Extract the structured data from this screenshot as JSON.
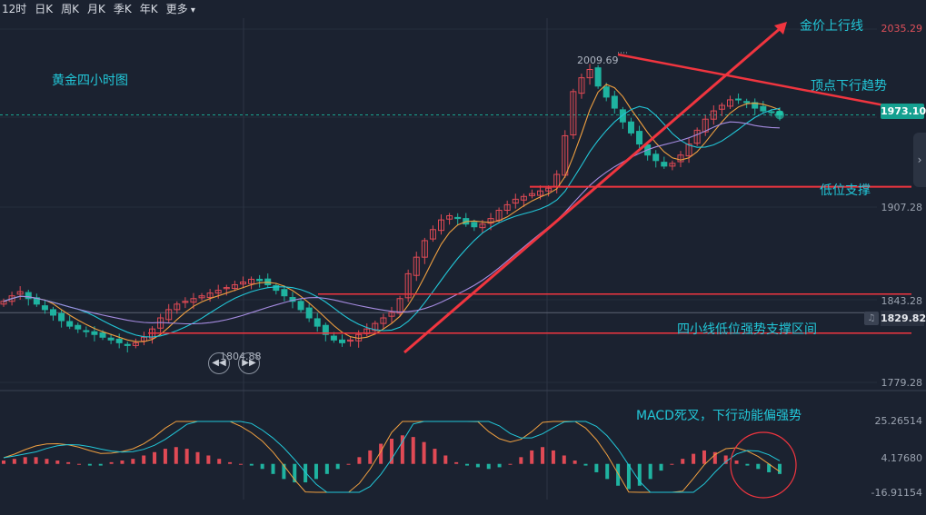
{
  "toolbar": {
    "items": [
      "12时",
      "日K",
      "周K",
      "月K",
      "季K",
      "年K",
      "更多"
    ]
  },
  "annotations": {
    "chart_title": "黄金四小时图",
    "uptrend": "金价上行线",
    "downtrend": "顶点下行趋势",
    "low_support": "低位支撑",
    "support_zone": "四小线低位强势支撑区间",
    "macd_note": "MACD死叉，下行动能偏强势"
  },
  "price_axis": {
    "top": "2035.29",
    "p2": "1907.28",
    "p3": "1843.28",
    "bottom": "1779.28",
    "current": "1973.10",
    "ref": "1829.82"
  },
  "macd_axis": {
    "top": "25.26514",
    "mid": "4.17680",
    "bottom": "-16.91154"
  },
  "markers": {
    "high": "2009.69",
    "low": "1804.88"
  },
  "colors": {
    "up": "#e04a55",
    "down": "#1fb3a0",
    "trend": "#f0353f",
    "annotation": "#22c7d8"
  },
  "chart_data": {
    "type": "candlestick",
    "title": "黄金四小时图",
    "ylim": [
      1779.28,
      2035.29
    ],
    "yticks": [
      2035.29,
      1907.28,
      1843.28,
      1779.28
    ],
    "current_price": 1973.1,
    "reference_price": 1829.82,
    "high_marker": 2009.69,
    "low_marker": 1804.88,
    "support_levels": [
      1921.0,
      1843.28,
      1815.0
    ],
    "price_path": [
      1838,
      1842,
      1845,
      1840,
      1836,
      1832,
      1828,
      1824,
      1820,
      1818,
      1816,
      1814,
      1812,
      1810,
      1808,
      1806,
      1808,
      1812,
      1818,
      1826,
      1832,
      1836,
      1838,
      1840,
      1842,
      1844,
      1846,
      1848,
      1850,
      1852,
      1854,
      1853,
      1850,
      1846,
      1842,
      1838,
      1832,
      1826,
      1820,
      1814,
      1810,
      1808,
      1810,
      1814,
      1818,
      1822,
      1826,
      1830,
      1840,
      1858,
      1870,
      1882,
      1890,
      1897,
      1900,
      1898,
      1894,
      1892,
      1894,
      1898,
      1904,
      1908,
      1912,
      1914,
      1916,
      1918,
      1920,
      1930,
      1958,
      1990,
      2000,
      2006,
      1994,
      1986,
      1978,
      1968,
      1960,
      1952,
      1944,
      1940,
      1936,
      1938,
      1944,
      1952,
      1962,
      1970,
      1976,
      1980,
      1984,
      1984,
      1982,
      1978,
      1976,
      1975,
      1973
    ],
    "macd_ylim": [
      -16.91154,
      25.26514
    ],
    "macd_histogram": [
      2,
      3,
      4,
      4,
      3,
      2,
      1,
      0,
      -1,
      -1,
      1,
      2,
      3,
      5,
      7,
      9,
      10,
      9,
      7,
      5,
      3,
      1,
      0,
      -1,
      -3,
      -6,
      -9,
      -11,
      -11,
      -9,
      -6,
      -3,
      0,
      4,
      8,
      12,
      15,
      17,
      16,
      13,
      9,
      5,
      1,
      -1,
      -2,
      -3,
      -2,
      0,
      4,
      8,
      10,
      8,
      5,
      2,
      -1,
      -5,
      -9,
      -13,
      -15,
      -13,
      -9,
      -4,
      0,
      3,
      6,
      8,
      7,
      5,
      2,
      -1,
      -3,
      -5,
      -6
    ]
  }
}
